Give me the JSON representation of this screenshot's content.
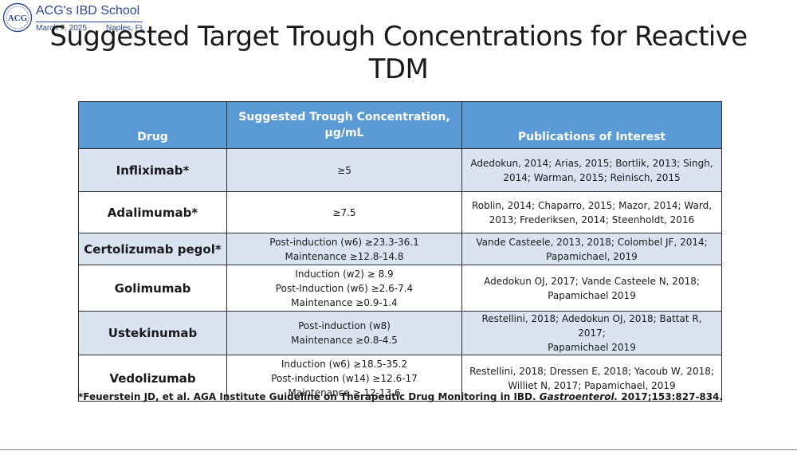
{
  "logo": {
    "name": "ACG's IBD School",
    "date": "March 7, 2025",
    "place": "Naples, FL",
    "seal_text": "ACG",
    "colors": {
      "primary": "#2c4a92"
    }
  },
  "title": {
    "line1": "Suggested Target Trough Concentrations for Reactive",
    "line2": "TDM"
  },
  "table": {
    "headers": {
      "drug": "Drug",
      "trough_line1": "Suggested Trough Concentration,",
      "trough_line2": "µg/mL",
      "publications": "Publications of Interest"
    },
    "rows": [
      {
        "drug": "Infliximab*",
        "trough": [
          "≥5"
        ],
        "publications": [
          "Adedokun, 2014; Arias, 2015; Bortlik, 2013; Singh,",
          "2014; Warman, 2015; Reinisch, 2015"
        ]
      },
      {
        "drug": "Adalimumab*",
        "trough": [
          "≥7.5"
        ],
        "publications": [
          "Roblin, 2014; Chaparro, 2015; Mazor, 2014; Ward,",
          "2013; Frederiksen, 2014; Steenholdt, 2016"
        ]
      },
      {
        "drug": "Certolizumab pegol*",
        "trough": [
          "Post-induction (w6) ≥23.3-36.1",
          "Maintenance ≥12.8-14.8"
        ],
        "publications": [
          "Vande Casteele, 2013, 2018; Colombel JF, 2014;",
          "Papamichael, 2019"
        ]
      },
      {
        "drug": "Golimumab",
        "trough": [
          "Induction (w2) ≥ 8.9",
          "Post-Induction (w6) ≥2.6-7.4",
          "Maintenance ≥0.9-1.4"
        ],
        "publications": [
          "Adedokun OJ, 2017; Vande Casteele N, 2018;",
          "Papamichael 2019"
        ]
      },
      {
        "drug": "Ustekinumab",
        "trough": [
          "Post-induction (w8)",
          "Maintenance ≥0.8-4.5"
        ],
        "publications": [
          "Restellini, 2018; Adedokun OJ, 2018; Battat R, 2017;",
          "Papamichael 2019"
        ]
      },
      {
        "drug": "Vedolizumab",
        "trough": [
          "Induction (w6) ≥18.5-35.2",
          "Post-induction (w14) ≥12.6-17",
          "Maintenance ≥ 12-13.6"
        ],
        "publications": [
          "Restellini, 2018; Dressen E, 2018; Yacoub W, 2018;",
          "Williet N, 2017; Papamichael, 2019"
        ]
      }
    ],
    "colors": {
      "header": "#5b9bd5",
      "band": "#dae4f1"
    }
  },
  "footnote": {
    "prefix": "*Feuerstein JD, et al. AGA Institute Guideline on Therapeutic Drug Monitoring in IBD.",
    "journal": "Gastroenterol.",
    "suffix": "2017;153:827-834."
  }
}
